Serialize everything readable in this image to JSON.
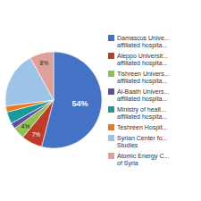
{
  "chart_data": {
    "type": "pie",
    "categories": [
      "Damascus Unive...\naffiliated hospita...",
      "Aleppo Universit...\naffiliated hospita...",
      "Tishreen Univers...\naffiliated hospita...",
      "Al-Baath Univers...\naffiliated hospita...",
      "Ministry of healt...\naffiliated hospita...",
      "Teshreen Hospit...",
      "Syrian Center fo...\nStudies",
      "Atomic Energy C...\nof Syria"
    ],
    "values": [
      54,
      7,
      4,
      2,
      4,
      2,
      19,
      8
    ],
    "colors": [
      "#4472C4",
      "#BE3C28",
      "#92C050",
      "#5F4FA0",
      "#1A9B9B",
      "#E87B1E",
      "#9DC3E6",
      "#E0A09A"
    ],
    "value_labels": [
      "54%",
      "7%",
      "4%",
      null,
      null,
      null,
      null,
      "8%"
    ],
    "data_labels": true,
    "legend": "right"
  }
}
